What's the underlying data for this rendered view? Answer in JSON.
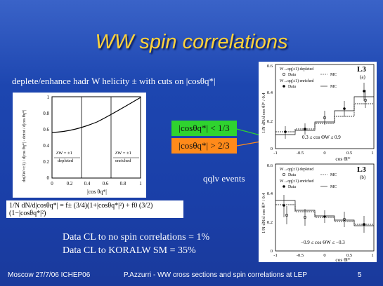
{
  "slide": {
    "title": "WW spin correlations",
    "subtitle": "deplete/enhance hadr W helicity ± with cuts on |cosθq*|",
    "cut1": "|cosθq*| < 1/3",
    "cut2": "|cosθq*| > 2/3",
    "qqlv": "qqlv events",
    "cl1": "Data CL to no spin correlations = 1%",
    "cl2": "Data CL to KORALW SM = 35%",
    "footer_left": "Moscow  27/7/06 ICHEP06",
    "footer_center": "P.Azzurri - WW cross sections and spin correlations at LEP",
    "page_number": "5"
  },
  "left_plot": {
    "ylabel": "dσ(λW=±1) / d|cos θq*|  ·  dσtot / d|cos θq*|",
    "xlabel": "|cos θq*|",
    "yticks": [
      "0",
      "0.2",
      "0.4",
      "0.6",
      "0.8",
      "1"
    ],
    "xticks": [
      "0",
      "0.2",
      "0.4",
      "0.6",
      "0.8",
      "1"
    ],
    "label_left": "λW = ±1",
    "label_left_sub": "depleted",
    "label_right": "λW = ±1",
    "label_right_sub": "enriched",
    "formula": "1/N dN/d|cosθq*| = f± (3/4)(1+|cosθq*|²) + f0 (3/2)(1−|cosθq*|²)"
  },
  "right_plot": {
    "ylabel": "1/N dN/d cos θl* / 0.4",
    "xlabel": "cos θl*",
    "top": {
      "tag": "L3",
      "panel": "(a)",
      "legend1": "W→qq(±1) depleted",
      "legend2": "W→qq(±1) enriched",
      "data_label": "Data",
      "mc_label": "MC",
      "range": "0.3 ≤ cos ΘW ≤ 0.9",
      "yticks": [
        "0",
        "0.2",
        "0.4",
        "0.6"
      ],
      "xticks": [
        "-1",
        "-0.5",
        "0",
        "0.5",
        "1"
      ]
    },
    "bottom": {
      "tag": "L3",
      "panel": "(b)",
      "legend1": "W→qq(±1) depleted",
      "legend2": "W→qq(±1) enriched",
      "data_label": "Data",
      "mc_label": "MC",
      "range": "−0.9 ≤ cos ΘW ≤ −0.3",
      "yticks": [
        "0",
        "0.2",
        "0.4",
        "0.6"
      ],
      "xticks": [
        "-1",
        "-0.5",
        "0",
        "0.5",
        "1"
      ]
    }
  },
  "colors": {
    "title": "#ffd23a",
    "cut1": "#2fd32f",
    "cut2": "#ff8a1a",
    "background": "#1f47b0"
  }
}
